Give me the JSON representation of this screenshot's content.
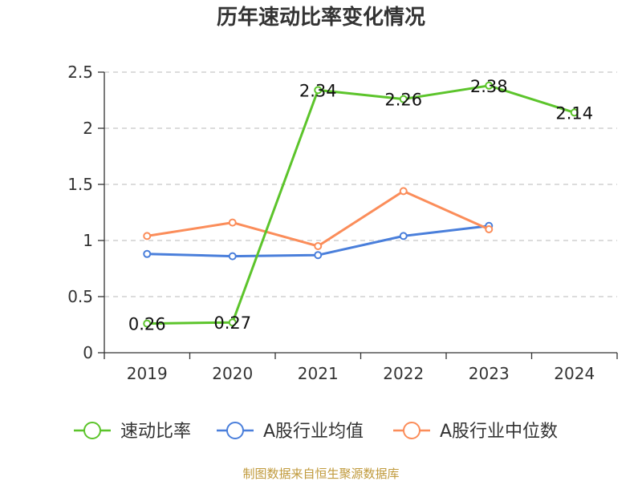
{
  "chart_data": {
    "type": "line",
    "title": "历年速动比率变化情况",
    "categories": [
      "2019",
      "2020",
      "2021",
      "2022",
      "2023",
      "2024"
    ],
    "ylim": [
      0,
      2.5
    ],
    "yticks": [
      "0",
      "0.5",
      "1",
      "1.5",
      "2",
      "2.5"
    ],
    "grid": "horizontal dashed",
    "legend": "bottom",
    "series": [
      {
        "name": "速动比率",
        "color": "#5cc42b",
        "values": [
          0.26,
          0.27,
          2.34,
          2.26,
          2.38,
          2.14
        ],
        "labels": [
          "0.26",
          "0.27",
          "2.34",
          "2.26",
          "2.38",
          "2.14"
        ]
      },
      {
        "name": "A股行业均值",
        "color": "#4a7fdb",
        "values": [
          0.88,
          0.86,
          0.87,
          1.04,
          1.13,
          null
        ]
      },
      {
        "name": "A股行业中位数",
        "color": "#fb8d5a",
        "values": [
          1.04,
          1.16,
          0.95,
          1.44,
          1.1,
          null
        ]
      }
    ]
  },
  "footer": {
    "source": "制图数据来自恒生聚源数据库"
  }
}
